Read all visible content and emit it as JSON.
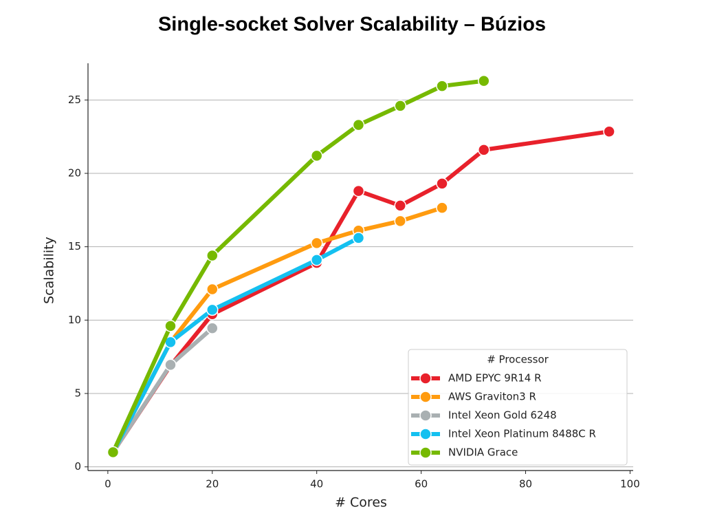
{
  "chart_data": {
    "type": "line",
    "title": "Single-socket Solver Scalability – Búzios",
    "x_label": "# Cores",
    "y_label": "Scalability",
    "legend_title": "# Processor",
    "legend_position": "lower right",
    "xlim": [
      -3.8,
      100.6
    ],
    "ylim": [
      -0.25,
      27.5
    ],
    "xticks": [
      0,
      20,
      40,
      60,
      80,
      100
    ],
    "yticks": [
      0,
      5,
      10,
      15,
      20,
      25
    ],
    "grid": true,
    "series": [
      {
        "name": "AMD EPYC 9R14 R",
        "color": "#e8212b",
        "x": [
          1,
          12,
          20,
          40,
          48,
          56,
          64,
          72,
          96
        ],
        "values": [
          1,
          6.9,
          10.4,
          13.9,
          18.8,
          17.8,
          19.3,
          21.6,
          22.85
        ]
      },
      {
        "name": "AWS Graviton3 R",
        "color": "#ff9b0f",
        "x": [
          1,
          12,
          20,
          40,
          48,
          56,
          64
        ],
        "values": [
          1,
          8.5,
          12.1,
          15.25,
          16.1,
          16.75,
          17.65
        ]
      },
      {
        "name": "Intel Xeon Gold 6248",
        "color": "#a9b0b2",
        "x": [
          1,
          12,
          20
        ],
        "values": [
          1,
          6.95,
          9.45
        ]
      },
      {
        "name": "Intel Xeon Platinum 8488C R",
        "color": "#14c0f0",
        "x": [
          1,
          12,
          20,
          40,
          48
        ],
        "values": [
          1,
          8.5,
          10.7,
          14.1,
          15.6
        ]
      },
      {
        "name": "NVIDIA Grace",
        "color": "#76b900",
        "x": [
          1,
          12,
          20,
          40,
          48,
          56,
          64,
          72
        ],
        "values": [
          1,
          9.6,
          14.4,
          21.2,
          23.3,
          24.6,
          25.95,
          26.3
        ]
      }
    ]
  }
}
